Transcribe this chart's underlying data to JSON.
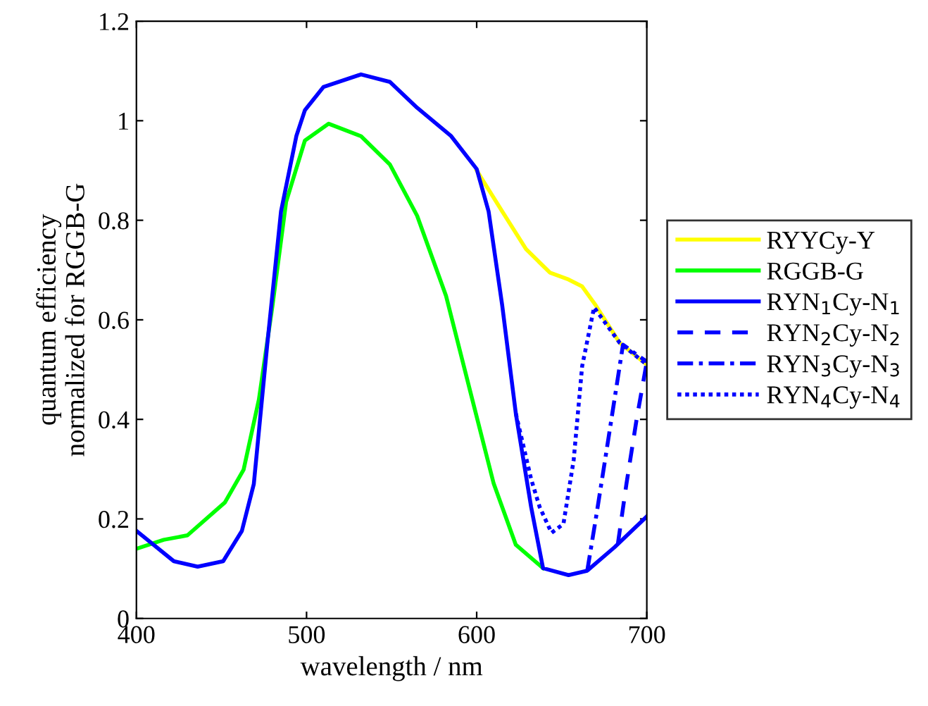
{
  "chart_data": {
    "type": "line",
    "xlabel": "wavelength / nm",
    "ylabel": "quantum efficiency\nnormalized for RGGB-G",
    "xlim": [
      400,
      700
    ],
    "xticks": [
      400,
      500,
      600,
      700
    ],
    "ylim": [
      0,
      1.2
    ],
    "yticks": [
      0,
      0.2,
      0.4,
      0.6,
      0.8,
      1,
      1.2
    ],
    "grid": false,
    "legend": "right",
    "series": [
      {
        "name": "RYYCy-Y",
        "color": "#ffff00",
        "line_style": "solid",
        "x": [
          600,
          615,
          629,
          643,
          654,
          662,
          670,
          684,
          700
        ],
        "values": [
          0.9,
          0.818,
          0.742,
          0.695,
          0.681,
          0.667,
          0.629,
          0.554,
          0.51
        ]
      },
      {
        "name": "RGGB-G",
        "color": "#00ff00",
        "line_style": "solid",
        "x": [
          400,
          416,
          430,
          452,
          463,
          472,
          480,
          488,
          499,
          513,
          532,
          549,
          565,
          582,
          596,
          610,
          623,
          639
        ],
        "values": [
          0.14,
          0.158,
          0.167,
          0.233,
          0.299,
          0.44,
          0.629,
          0.837,
          0.96,
          0.994,
          0.969,
          0.912,
          0.809,
          0.648,
          0.459,
          0.271,
          0.148,
          0.101
        ]
      },
      {
        "name": "RYN$_{1}$Cy-N$_{1}$",
        "color": "#0000ff",
        "line_style": "solid",
        "x": [
          400,
          422,
          436,
          451,
          462,
          469,
          477,
          485,
          494,
          499,
          510,
          532,
          549,
          565,
          585,
          600,
          607,
          615,
          623,
          632,
          639,
          654,
          665,
          681,
          700
        ],
        "values": [
          0.176,
          0.115,
          0.104,
          0.115,
          0.176,
          0.27,
          0.554,
          0.818,
          0.969,
          1.021,
          1.068,
          1.093,
          1.078,
          1.026,
          0.969,
          0.903,
          0.818,
          0.629,
          0.412,
          0.224,
          0.101,
          0.087,
          0.096,
          0.143,
          0.205
        ]
      },
      {
        "name": "RYN$_{2}$Cy-N$_{2}$",
        "color": "#0000ff",
        "line_style": "dashed",
        "x": [
          683,
          688,
          694,
          700
        ],
        "values": [
          0.15,
          0.27,
          0.4,
          0.516
        ]
      },
      {
        "name": "RYN$_{3}$Cy-N$_{3}$",
        "color": "#0000ff",
        "line_style": "dashdot",
        "x": [
          665,
          670,
          676,
          686,
          692,
          700
        ],
        "values": [
          0.096,
          0.2,
          0.33,
          0.55,
          0.535,
          0.516
        ]
      },
      {
        "name": "RYN$_{4}$Cy-N$_{4}$",
        "color": "#0000ff",
        "line_style": "dotted",
        "x": [
          623,
          632,
          637,
          644,
          651,
          657,
          662,
          669,
          684,
          700
        ],
        "values": [
          0.412,
          0.28,
          0.224,
          0.172,
          0.19,
          0.318,
          0.507,
          0.625,
          0.554,
          0.51
        ]
      }
    ]
  }
}
